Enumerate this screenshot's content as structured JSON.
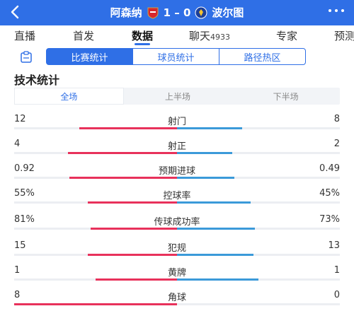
{
  "header": {
    "back_icon": "chevron-left-icon",
    "home_team": "阿森纳",
    "score": "1 – 0",
    "away_team": "波尔图",
    "more_icon": "more-dots-icon",
    "bg_color": "#2f6fe6"
  },
  "tabs": [
    {
      "label": "直播",
      "badge": ""
    },
    {
      "label": "首发",
      "badge": ""
    },
    {
      "label": "数据",
      "badge": "",
      "active": true
    },
    {
      "label": "聊天",
      "badge": "4933"
    },
    {
      "label": "专家",
      "badge": ""
    },
    {
      "label": "预测",
      "badge": ""
    }
  ],
  "segments": [
    "比赛统计",
    "球员统计",
    "路径热区"
  ],
  "section_title": "技术统计",
  "periods": [
    "全场",
    "上半场",
    "下半场"
  ],
  "colors": {
    "home": "#e8315b",
    "away": "#3b9ad9",
    "accent": "#2f6fe6"
  },
  "stats": [
    {
      "name": "射门",
      "home": "12",
      "away": "8",
      "home_frac": 0.6,
      "away_frac": 0.4
    },
    {
      "name": "射正",
      "home": "4",
      "away": "2",
      "home_frac": 0.67,
      "away_frac": 0.34
    },
    {
      "name": "预期进球",
      "home": "0.92",
      "away": "0.49",
      "home_frac": 0.66,
      "away_frac": 0.35
    },
    {
      "name": "控球率",
      "home": "55%",
      "away": "45%",
      "home_frac": 0.55,
      "away_frac": 0.45
    },
    {
      "name": "传球成功率",
      "home": "81%",
      "away": "73%",
      "home_frac": 0.53,
      "away_frac": 0.48
    },
    {
      "name": "犯规",
      "home": "15",
      "away": "13",
      "home_frac": 0.55,
      "away_frac": 0.47
    },
    {
      "name": "黄牌",
      "home": "1",
      "away": "1",
      "home_frac": 0.5,
      "away_frac": 0.5
    },
    {
      "name": "角球",
      "home": "8",
      "away": "0",
      "home_frac": 1.0,
      "away_frac": 0.0
    }
  ]
}
